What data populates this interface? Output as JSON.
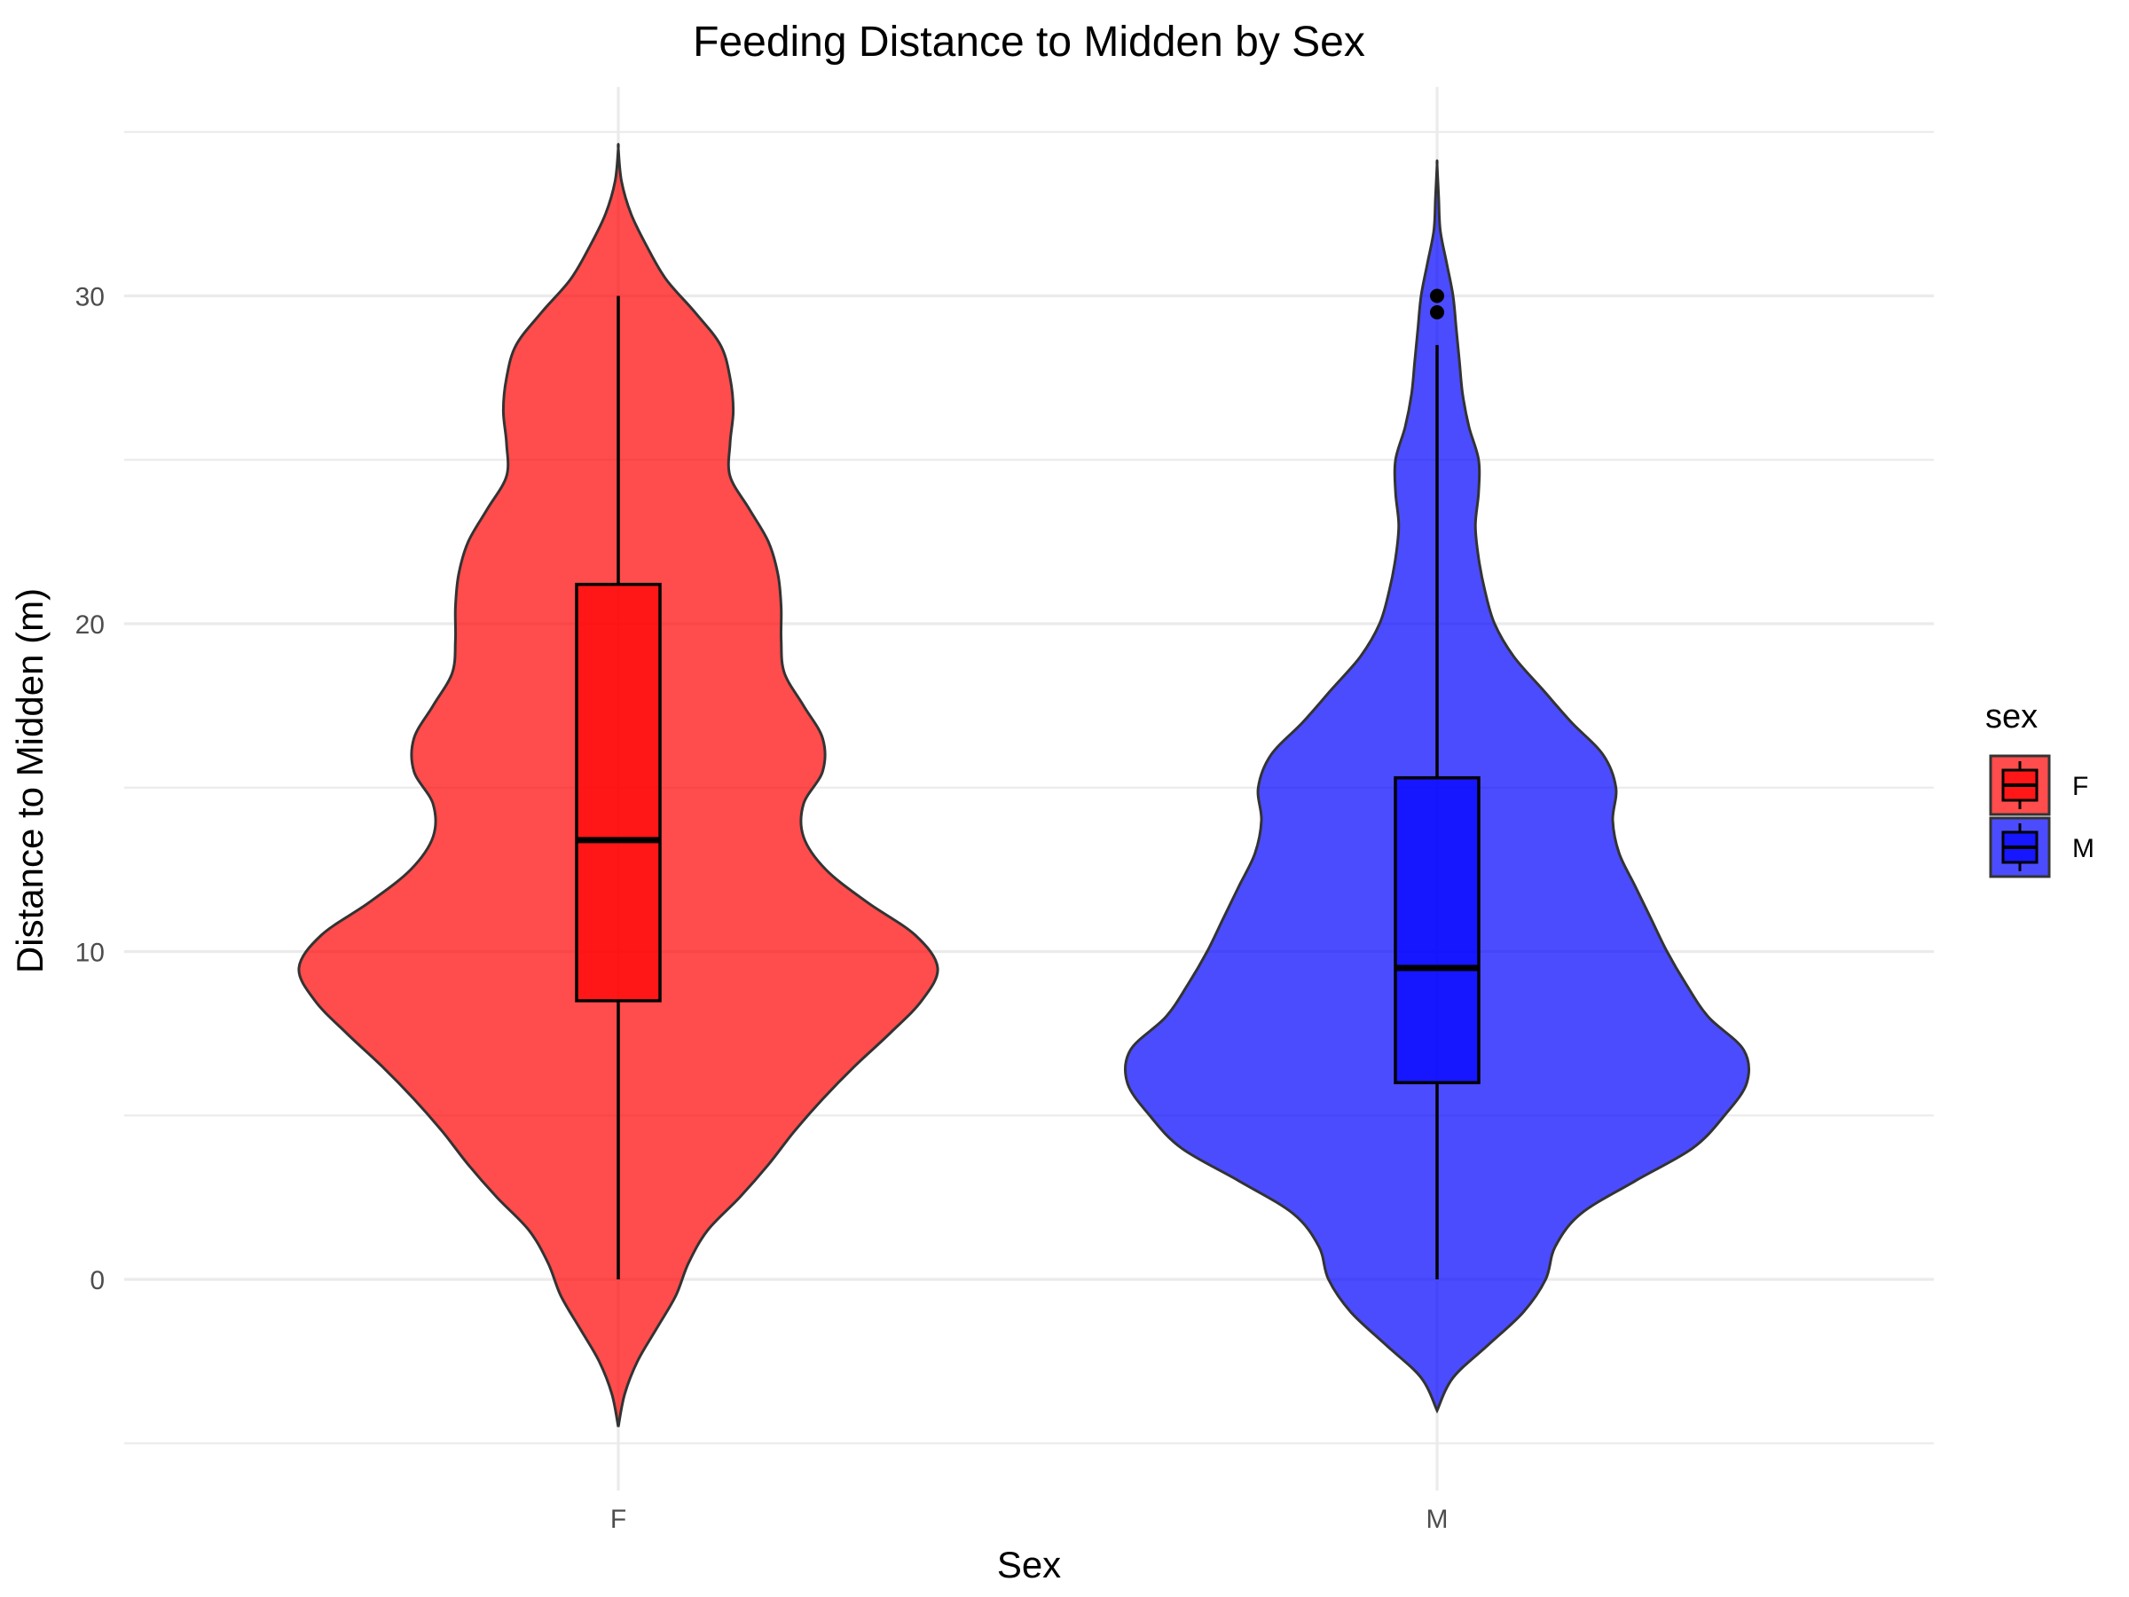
{
  "chart_data": {
    "type": "violin",
    "title": "Feeding Distance to Midden by Sex",
    "xlabel": "Sex",
    "ylabel": "Distance to Midden (m)",
    "ylim": [
      -5,
      35
    ],
    "yticks": [
      0,
      10,
      20,
      30
    ],
    "categories": [
      "F",
      "M"
    ],
    "grid": true,
    "legend": {
      "title": "sex",
      "position": "right",
      "entries": [
        "F",
        "M"
      ]
    },
    "series": [
      {
        "name": "F",
        "color": "#ff0000",
        "box": {
          "min": 0,
          "q1": 8.5,
          "median": 13.4,
          "q3": 21.2,
          "max": 30
        },
        "outliers": [],
        "density": [
          [
            -4.5,
            0.0
          ],
          [
            -3.5,
            0.02
          ],
          [
            -2.5,
            0.06
          ],
          [
            -1.5,
            0.12
          ],
          [
            -0.5,
            0.18
          ],
          [
            0.5,
            0.22
          ],
          [
            1.5,
            0.28
          ],
          [
            2.5,
            0.38
          ],
          [
            3.5,
            0.47
          ],
          [
            4.5,
            0.55
          ],
          [
            5.5,
            0.64
          ],
          [
            6.5,
            0.74
          ],
          [
            7.5,
            0.85
          ],
          [
            8.5,
            0.95
          ],
          [
            9.5,
            1.0
          ],
          [
            10.5,
            0.93
          ],
          [
            11.5,
            0.78
          ],
          [
            12.5,
            0.65
          ],
          [
            13.5,
            0.58
          ],
          [
            14.5,
            0.58
          ],
          [
            15.5,
            0.64
          ],
          [
            16.5,
            0.64
          ],
          [
            17.5,
            0.58
          ],
          [
            18.5,
            0.52
          ],
          [
            19.5,
            0.51
          ],
          [
            20.5,
            0.51
          ],
          [
            21.5,
            0.5
          ],
          [
            22.5,
            0.47
          ],
          [
            23.5,
            0.41
          ],
          [
            24.5,
            0.35
          ],
          [
            25.5,
            0.35
          ],
          [
            26.5,
            0.36
          ],
          [
            27.5,
            0.35
          ],
          [
            28.5,
            0.32
          ],
          [
            29.5,
            0.24
          ],
          [
            30.5,
            0.15
          ],
          [
            31.5,
            0.09
          ],
          [
            32.5,
            0.04
          ],
          [
            33.5,
            0.01
          ],
          [
            34.5,
            0.0
          ]
        ]
      },
      {
        "name": "M",
        "color": "#0000ff",
        "box": {
          "min": 0,
          "q1": 6.0,
          "median": 9.5,
          "q3": 15.3,
          "max": 28.5
        },
        "outliers": [
          29.5,
          30.0
        ],
        "density": [
          [
            -4.0,
            0.0
          ],
          [
            -3.0,
            0.05
          ],
          [
            -2.0,
            0.16
          ],
          [
            -1.0,
            0.27
          ],
          [
            0.0,
            0.34
          ],
          [
            1.0,
            0.37
          ],
          [
            2.0,
            0.45
          ],
          [
            3.0,
            0.62
          ],
          [
            4.0,
            0.8
          ],
          [
            5.0,
            0.9
          ],
          [
            6.0,
            0.97
          ],
          [
            7.0,
            0.96
          ],
          [
            8.0,
            0.85
          ],
          [
            9.0,
            0.78
          ],
          [
            10.0,
            0.72
          ],
          [
            11.0,
            0.67
          ],
          [
            12.0,
            0.62
          ],
          [
            13.0,
            0.57
          ],
          [
            14.0,
            0.55
          ],
          [
            15.0,
            0.56
          ],
          [
            16.0,
            0.52
          ],
          [
            17.0,
            0.42
          ],
          [
            18.0,
            0.33
          ],
          [
            19.0,
            0.24
          ],
          [
            20.0,
            0.18
          ],
          [
            21.0,
            0.15
          ],
          [
            22.0,
            0.13
          ],
          [
            23.0,
            0.12
          ],
          [
            24.0,
            0.13
          ],
          [
            25.0,
            0.13
          ],
          [
            26.0,
            0.1
          ],
          [
            27.0,
            0.08
          ],
          [
            28.0,
            0.07
          ],
          [
            29.0,
            0.06
          ],
          [
            30.0,
            0.05
          ],
          [
            31.0,
            0.03
          ],
          [
            32.0,
            0.01
          ],
          [
            33.0,
            0.005
          ],
          [
            34.0,
            0.0
          ]
        ]
      }
    ]
  }
}
